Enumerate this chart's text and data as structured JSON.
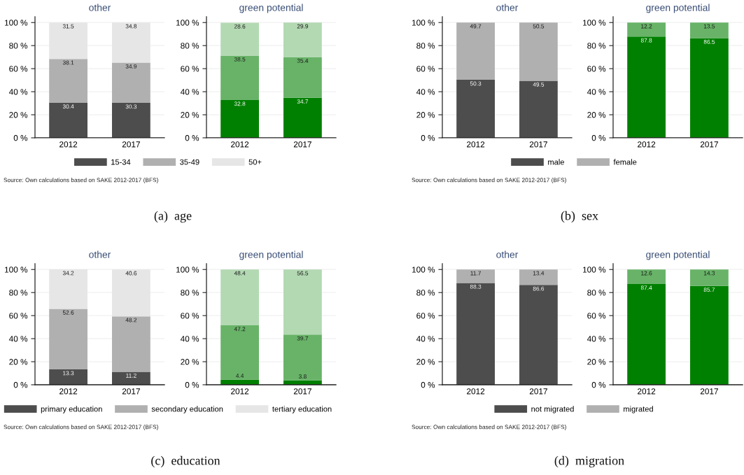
{
  "chart_data": [
    {
      "type": "bar",
      "title": "other",
      "categories": [
        "2012",
        "2017"
      ],
      "stacked": true,
      "data_labels": true,
      "grid": "y",
      "legend": "bottom",
      "ylim": [
        0,
        105
      ],
      "yticks": [
        {
          "value": 0,
          "label": "0 %"
        },
        {
          "value": 20,
          "label": "20 %"
        },
        {
          "value": 40,
          "label": "40 %"
        },
        {
          "value": 60,
          "label": "60 %"
        },
        {
          "value": 80,
          "label": "80 %"
        },
        {
          "value": 100,
          "label": "100 %"
        }
      ],
      "series": [
        {
          "name": "15-34",
          "color": "#4d4d4d",
          "values": [
            30.4,
            30.3
          ]
        },
        {
          "name": "35-49",
          "color": "#b0b0b0",
          "values": [
            38.1,
            34.9
          ]
        },
        {
          "name": "50+",
          "color": "#e6e6e6",
          "values": [
            31.5,
            34.8
          ]
        }
      ],
      "annotations": [
        "Source: Own calculations based on SAKE 2012-2017 (BFS)",
        "(a)  age"
      ]
    },
    {
      "type": "bar",
      "title": "green potential",
      "categories": [
        "2012",
        "2017"
      ],
      "stacked": true,
      "data_labels": true,
      "grid": "y",
      "ylim": [
        0,
        105
      ],
      "yticks": [
        {
          "value": 0,
          "label": "0 %"
        },
        {
          "value": 20,
          "label": "20 %"
        },
        {
          "value": 40,
          "label": "40 %"
        },
        {
          "value": 60,
          "label": "60 %"
        },
        {
          "value": 80,
          "label": "80 %"
        },
        {
          "value": 100,
          "label": "100 %"
        }
      ],
      "series": [
        {
          "color": "#008000",
          "values": [
            32.8,
            34.7
          ]
        },
        {
          "color": "#68b368",
          "values": [
            38.5,
            35.4
          ]
        },
        {
          "color": "#b3d9b3",
          "values": [
            28.6,
            29.9
          ]
        }
      ]
    },
    {
      "type": "bar",
      "title": "other",
      "categories": [
        "2012",
        "2017"
      ],
      "stacked": true,
      "data_labels": true,
      "grid": "y",
      "legend": "bottom",
      "ylim": [
        0,
        105
      ],
      "yticks": [
        {
          "value": 0,
          "label": "0 %"
        },
        {
          "value": 20,
          "label": "20 %"
        },
        {
          "value": 40,
          "label": "40 %"
        },
        {
          "value": 60,
          "label": "60 %"
        },
        {
          "value": 80,
          "label": "80 %"
        },
        {
          "value": 100,
          "label": "100 %"
        }
      ],
      "series": [
        {
          "name": "male",
          "color": "#4d4d4d",
          "values": [
            50.3,
            49.5
          ]
        },
        {
          "name": "female",
          "color": "#b0b0b0",
          "values": [
            49.7,
            50.5
          ]
        }
      ],
      "annotations": [
        "Source: Own calculations based on SAKE 2012-2017 (BFS)",
        "(b)  sex"
      ]
    },
    {
      "type": "bar",
      "title": "green potential",
      "categories": [
        "2012",
        "2017"
      ],
      "stacked": true,
      "data_labels": true,
      "grid": "y",
      "ylim": [
        0,
        105
      ],
      "yticks": [
        {
          "value": 0,
          "label": "0 %"
        },
        {
          "value": 20,
          "label": "20 %"
        },
        {
          "value": 40,
          "label": "40 %"
        },
        {
          "value": 60,
          "label": "60 %"
        },
        {
          "value": 80,
          "label": "80 %"
        },
        {
          "value": 100,
          "label": "100 %"
        }
      ],
      "series": [
        {
          "color": "#008000",
          "values": [
            87.8,
            86.5
          ]
        },
        {
          "color": "#68b368",
          "values": [
            12.2,
            13.5
          ]
        }
      ]
    },
    {
      "type": "bar",
      "title": "other",
      "categories": [
        "2012",
        "2017"
      ],
      "stacked": true,
      "data_labels": true,
      "grid": "y",
      "legend": "bottom",
      "ylim": [
        0,
        105
      ],
      "yticks": [
        {
          "value": 0,
          "label": "0 %"
        },
        {
          "value": 20,
          "label": "20 %"
        },
        {
          "value": 40,
          "label": "40 %"
        },
        {
          "value": 60,
          "label": "60 %"
        },
        {
          "value": 80,
          "label": "80 %"
        },
        {
          "value": 100,
          "label": "100 %"
        }
      ],
      "series": [
        {
          "name": "primary education",
          "color": "#4d4d4d",
          "values": [
            13.3,
            11.2
          ]
        },
        {
          "name": "secondary education",
          "color": "#b0b0b0",
          "values": [
            52.6,
            48.2
          ]
        },
        {
          "name": "tertiary education",
          "color": "#e6e6e6",
          "values": [
            34.2,
            40.6
          ]
        }
      ],
      "annotations": [
        "Source: Own calculations based on SAKE 2012-2017 (BFS)",
        "(c)  education"
      ]
    },
    {
      "type": "bar",
      "title": "green potential",
      "categories": [
        "2012",
        "2017"
      ],
      "stacked": true,
      "data_labels": true,
      "grid": "y",
      "ylim": [
        0,
        105
      ],
      "yticks": [
        {
          "value": 0,
          "label": "0 %"
        },
        {
          "value": 20,
          "label": "20 %"
        },
        {
          "value": 40,
          "label": "40 %"
        },
        {
          "value": 60,
          "label": "60 %"
        },
        {
          "value": 80,
          "label": "80 %"
        },
        {
          "value": 100,
          "label": "100 %"
        }
      ],
      "series": [
        {
          "color": "#008000",
          "values": [
            4.4,
            3.8
          ]
        },
        {
          "color": "#68b368",
          "values": [
            47.2,
            39.7
          ]
        },
        {
          "color": "#b3d9b3",
          "values": [
            48.4,
            56.5
          ]
        }
      ]
    },
    {
      "type": "bar",
      "title": "other",
      "categories": [
        "2012",
        "2017"
      ],
      "stacked": true,
      "data_labels": true,
      "grid": "y",
      "legend": "bottom",
      "ylim": [
        0,
        105
      ],
      "yticks": [
        {
          "value": 0,
          "label": "0 %"
        },
        {
          "value": 20,
          "label": "20 %"
        },
        {
          "value": 40,
          "label": "40 %"
        },
        {
          "value": 60,
          "label": "60 %"
        },
        {
          "value": 80,
          "label": "80 %"
        },
        {
          "value": 100,
          "label": "100 %"
        }
      ],
      "series": [
        {
          "name": "not migrated",
          "color": "#4d4d4d",
          "values": [
            88.3,
            86.6
          ]
        },
        {
          "name": "migrated",
          "color": "#b0b0b0",
          "values": [
            11.7,
            13.4
          ]
        }
      ],
      "annotations": [
        "Source: Own calculations based on SAKE 2012-2017 (BFS)",
        "(d)  migration"
      ]
    },
    {
      "type": "bar",
      "title": "green potential",
      "categories": [
        "2012",
        "2017"
      ],
      "stacked": true,
      "data_labels": true,
      "grid": "y",
      "ylim": [
        0,
        105
      ],
      "yticks": [
        {
          "value": 0,
          "label": "0 %"
        },
        {
          "value": 20,
          "label": "20 %"
        },
        {
          "value": 40,
          "label": "40 %"
        },
        {
          "value": 60,
          "label": "60 %"
        },
        {
          "value": 80,
          "label": "80 %"
        },
        {
          "value": 100,
          "label": "100 %"
        }
      ],
      "series": [
        {
          "color": "#008000",
          "values": [
            87.4,
            85.7
          ]
        },
        {
          "color": "#68b368",
          "values": [
            12.6,
            14.3
          ]
        }
      ]
    }
  ]
}
